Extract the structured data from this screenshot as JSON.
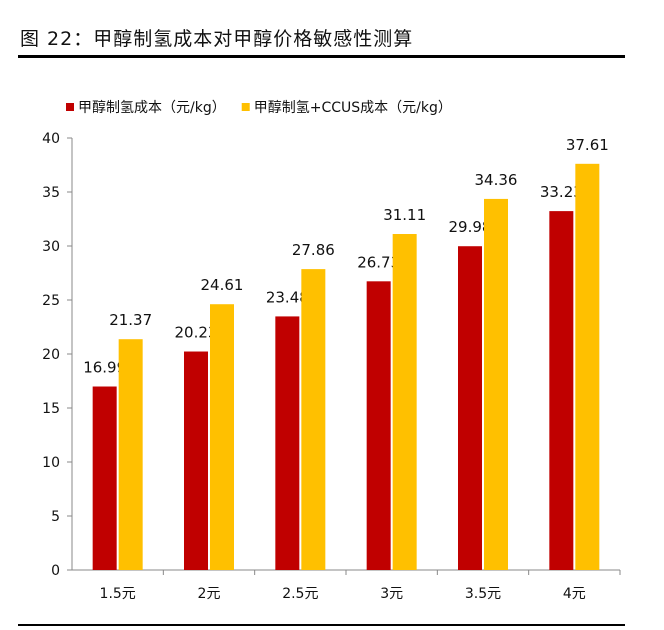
{
  "title": "图 22：甲醇制氢成本对甲醇价格敏感性测算",
  "chart_data": {
    "type": "bar",
    "categories": [
      "1.5元",
      "2元",
      "2.5元",
      "3元",
      "3.5元",
      "4元"
    ],
    "series": [
      {
        "name": "甲醇制氢成本（元/kg）",
        "values": [
          16.99,
          20.23,
          23.48,
          26.73,
          29.98,
          33.23
        ],
        "color": "#C00000"
      },
      {
        "name": "甲醇制氢+CCUS成本（元/kg）",
        "values": [
          21.37,
          24.61,
          27.86,
          31.11,
          34.36,
          37.61
        ],
        "color": "#FFC000"
      }
    ],
    "ylim": [
      0,
      40
    ],
    "yticks": [
      0,
      5,
      10,
      15,
      20,
      25,
      30,
      35,
      40
    ],
    "grid": false,
    "legend": "top-left"
  }
}
